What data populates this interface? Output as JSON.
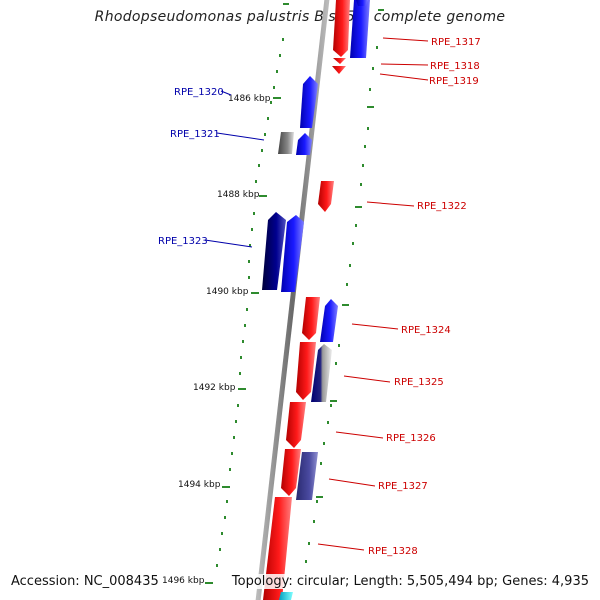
{
  "header": {
    "title": "Rhodopseudomonas palustris BisA53, complete genome"
  },
  "footer": {
    "accession": "Accession: NC_008435",
    "topology": "Topology: circular; Length: 5,505,494 bp; Genes: 4,935"
  },
  "colors": {
    "forward_gene": "#ff0000",
    "reverse_gene": "#0000ff",
    "reverse_gene_dark": "#000080",
    "reverse_gene_slate": "#4a4a9e",
    "gray_gene": "#777777",
    "cyan_gene": "#00e5ff",
    "forward_label": "#cc0000",
    "reverse_label": "#0000aa",
    "tick": "#2e8b2e",
    "backbone": "#888888"
  },
  "ruler": {
    "unit": "kbp",
    "labels": [
      {
        "kbp": 1486,
        "text": "1486 kbp"
      },
      {
        "kbp": 1488,
        "text": "1488 kbp"
      },
      {
        "kbp": 1490,
        "text": "1490 kbp"
      },
      {
        "kbp": 1492,
        "text": "1492 kbp"
      },
      {
        "kbp": 1494,
        "text": "1494 kbp"
      },
      {
        "kbp": 1496,
        "text": "1496 kbp"
      }
    ]
  },
  "genes": [
    {
      "id": "RPE_1317",
      "label": "RPE_1317",
      "strand": "forward"
    },
    {
      "id": "RPE_1318",
      "label": "RPE_1318",
      "strand": "forward"
    },
    {
      "id": "RPE_1319",
      "label": "RPE_1319",
      "strand": "forward"
    },
    {
      "id": "RPE_1320",
      "label": "RPE_1320",
      "strand": "reverse"
    },
    {
      "id": "RPE_1321",
      "label": "RPE_1321",
      "strand": "reverse"
    },
    {
      "id": "RPE_1322",
      "label": "RPE_1322",
      "strand": "forward"
    },
    {
      "id": "RPE_1323",
      "label": "RPE_1323",
      "strand": "reverse"
    },
    {
      "id": "RPE_1324",
      "label": "RPE_1324",
      "strand": "forward"
    },
    {
      "id": "RPE_1325",
      "label": "RPE_1325",
      "strand": "forward"
    },
    {
      "id": "RPE_1326",
      "label": "RPE_1326",
      "strand": "forward"
    },
    {
      "id": "RPE_1327",
      "label": "RPE_1327",
      "strand": "forward"
    },
    {
      "id": "RPE_1328",
      "label": "RPE_1328",
      "strand": "forward"
    }
  ]
}
